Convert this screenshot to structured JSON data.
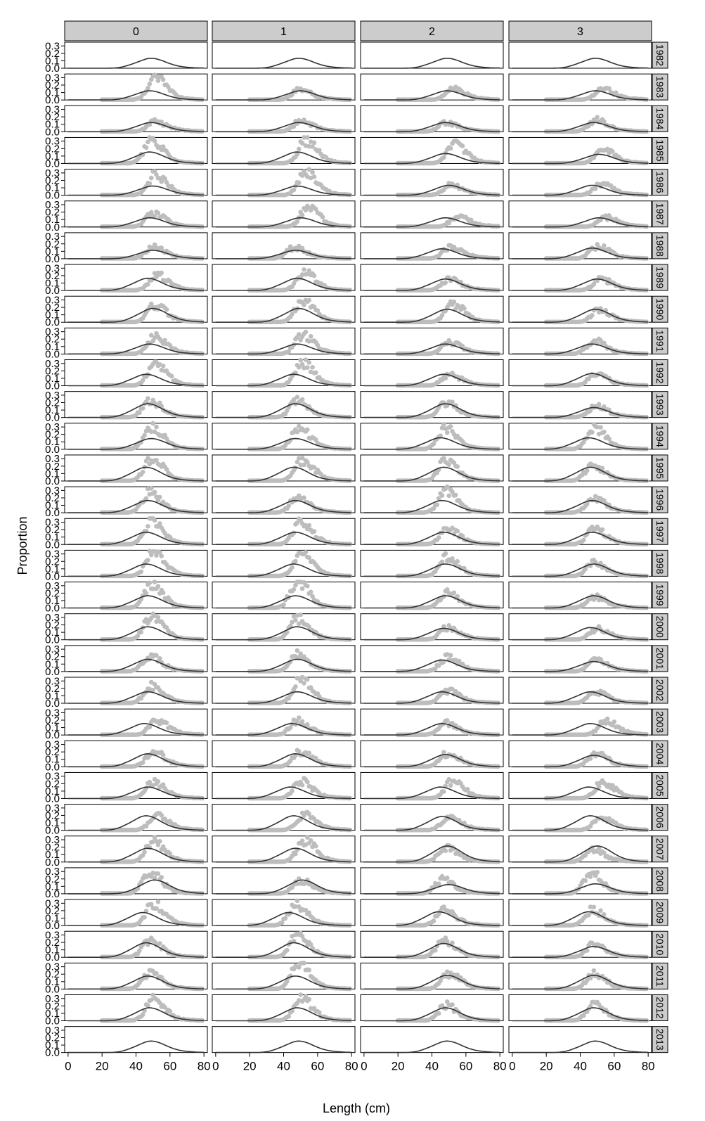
{
  "chart_data": {
    "type": "scatter",
    "title": "",
    "xlabel": "Length (cm)",
    "ylabel": "Proportion",
    "xlim": [
      -2,
      82
    ],
    "ylim": [
      0,
      0.35
    ],
    "x_ticks": [
      0,
      20,
      40,
      60,
      80
    ],
    "y_ticks": [
      0.0,
      0.1,
      0.2,
      0.3
    ],
    "x_tick_labels": [
      "0",
      "20",
      "40",
      "60",
      "80"
    ],
    "y_tick_labels": [
      "0.0",
      "0.1",
      "0.2",
      "0.3"
    ],
    "grid": false,
    "legend": "none",
    "columns": [
      "0",
      "1",
      "2",
      "3"
    ],
    "rows": [
      "1982",
      "1983",
      "1984",
      "1985",
      "1986",
      "1987",
      "1988",
      "1989",
      "1990",
      "1991",
      "1992",
      "1993",
      "1994",
      "1995",
      "1996",
      "1997",
      "1998",
      "1999",
      "2000",
      "2001",
      "2002",
      "2003",
      "2004",
      "2005",
      "2006",
      "2007",
      "2008",
      "2009",
      "2010",
      "2011",
      "2012",
      "2013"
    ],
    "observed_color": "#bdbdbd",
    "fitted_color": "#333333",
    "fit_mode": [
      [
        49,
        49,
        49,
        49
      ],
      [
        48,
        50,
        49,
        49
      ],
      [
        49,
        49,
        48,
        48
      ],
      [
        48,
        48,
        48,
        51
      ],
      [
        50,
        48,
        50,
        47
      ],
      [
        48,
        50,
        48,
        51
      ],
      [
        50,
        47,
        46,
        47
      ],
      [
        47,
        48,
        48,
        50
      ],
      [
        50,
        49,
        49,
        49
      ],
      [
        48,
        48,
        48,
        47
      ],
      [
        46,
        46,
        47,
        47
      ],
      [
        47,
        47,
        48,
        48
      ],
      [
        49,
        47,
        45,
        45
      ],
      [
        46,
        46,
        47,
        46
      ],
      [
        47,
        47,
        46,
        47
      ],
      [
        46,
        47,
        47,
        47
      ],
      [
        46,
        46,
        48,
        48
      ],
      [
        47,
        47,
        48,
        48
      ],
      [
        47,
        48,
        47,
        46
      ],
      [
        47,
        48,
        46,
        48
      ],
      [
        47,
        48,
        46,
        46
      ],
      [
        45,
        45,
        46,
        46
      ],
      [
        47,
        47,
        48,
        48
      ],
      [
        47,
        44,
        45,
        45
      ],
      [
        46,
        46,
        46,
        46
      ],
      [
        47,
        47,
        49,
        50
      ],
      [
        51,
        51,
        50,
        49
      ],
      [
        44,
        43,
        44,
        45
      ],
      [
        46,
        46,
        47,
        48
      ],
      [
        47,
        47,
        49,
        48
      ],
      [
        48,
        48,
        48,
        48
      ],
      [
        49,
        49,
        49,
        49
      ]
    ],
    "obs_mode": [
      [
        null,
        null,
        null,
        null
      ],
      [
        51,
        49,
        52,
        53
      ],
      [
        51,
        50,
        48,
        49
      ],
      [
        49,
        53,
        53,
        53
      ],
      [
        51,
        53,
        51,
        52
      ],
      [
        50,
        54,
        55,
        55
      ],
      [
        50,
        46,
        51,
        50
      ],
      [
        52,
        52,
        50,
        52
      ],
      [
        51,
        51,
        52,
        51
      ],
      [
        51,
        51,
        50,
        48
      ],
      [
        51,
        51,
        50,
        49
      ],
      [
        48,
        48,
        48,
        49
      ],
      [
        49,
        49,
        48,
        48
      ],
      [
        49,
        51,
        48,
        47
      ],
      [
        48,
        48,
        48,
        48
      ],
      [
        49,
        50,
        49,
        48
      ],
      [
        50,
        50,
        49,
        48
      ],
      [
        49,
        48,
        49,
        48
      ],
      [
        49,
        48,
        49,
        50
      ],
      [
        48,
        48,
        49,
        49
      ],
      [
        49,
        50,
        49,
        49
      ],
      [
        52,
        48,
        48,
        55
      ],
      [
        50,
        50,
        49,
        49
      ],
      [
        50,
        50,
        52,
        53
      ],
      [
        52,
        52,
        50,
        52
      ],
      [
        50,
        52,
        48,
        47
      ],
      [
        48,
        50,
        46,
        46
      ],
      [
        50,
        47,
        47,
        47
      ],
      [
        48,
        48,
        47,
        48
      ],
      [
        48,
        49,
        50,
        48
      ],
      [
        50,
        50,
        48,
        48
      ],
      [
        null,
        null,
        null,
        null
      ]
    ],
    "obs_peak": [
      [
        0,
        0,
        0,
        0
      ],
      [
        0.3,
        0.13,
        0.14,
        0.14
      ],
      [
        0.13,
        0.14,
        0.11,
        0.15
      ],
      [
        0.3,
        0.3,
        0.25,
        0.18
      ],
      [
        0.26,
        0.31,
        0.13,
        0.14
      ],
      [
        0.17,
        0.25,
        0.13,
        0.12
      ],
      [
        0.15,
        0.14,
        0.16,
        0.16
      ],
      [
        0.2,
        0.23,
        0.14,
        0.14
      ],
      [
        0.22,
        0.3,
        0.24,
        0.16
      ],
      [
        0.22,
        0.25,
        0.15,
        0.17
      ],
      [
        0.28,
        0.3,
        0.14,
        0.14
      ],
      [
        0.22,
        0.22,
        0.19,
        0.14
      ],
      [
        0.3,
        0.28,
        0.28,
        0.27
      ],
      [
        0.3,
        0.28,
        0.26,
        0.2
      ],
      [
        0.26,
        0.2,
        0.28,
        0.2
      ],
      [
        0.3,
        0.28,
        0.2,
        0.2
      ],
      [
        0.3,
        0.28,
        0.25,
        0.18
      ],
      [
        0.31,
        0.34,
        0.2,
        0.14
      ],
      [
        0.31,
        0.28,
        0.16,
        0.14
      ],
      [
        0.2,
        0.22,
        0.18,
        0.14
      ],
      [
        0.22,
        0.32,
        0.16,
        0.14
      ],
      [
        0.18,
        0.18,
        0.15,
        0.18
      ],
      [
        0.2,
        0.2,
        0.17,
        0.17
      ],
      [
        0.22,
        0.22,
        0.23,
        0.22
      ],
      [
        0.19,
        0.2,
        0.17,
        0.17
      ],
      [
        0.26,
        0.28,
        0.18,
        0.16
      ],
      [
        0.3,
        0.17,
        0.18,
        0.27
      ],
      [
        0.28,
        0.28,
        0.2,
        0.2
      ],
      [
        0.22,
        0.3,
        0.22,
        0.17
      ],
      [
        0.2,
        0.34,
        0.2,
        0.19
      ],
      [
        0.28,
        0.3,
        0.2,
        0.2
      ],
      [
        0,
        0,
        0,
        0
      ]
    ],
    "fit_peak": [
      [
        0.13,
        0.13,
        0.13,
        0.13
      ],
      [
        0.12,
        0.12,
        0.12,
        0.12
      ],
      [
        0.12,
        0.12,
        0.12,
        0.12
      ],
      [
        0.15,
        0.15,
        0.13,
        0.12
      ],
      [
        0.12,
        0.12,
        0.13,
        0.13
      ],
      [
        0.12,
        0.12,
        0.12,
        0.12
      ],
      [
        0.11,
        0.11,
        0.13,
        0.14
      ],
      [
        0.16,
        0.16,
        0.15,
        0.15
      ],
      [
        0.18,
        0.18,
        0.17,
        0.17
      ],
      [
        0.13,
        0.13,
        0.13,
        0.13
      ],
      [
        0.15,
        0.15,
        0.15,
        0.16
      ],
      [
        0.18,
        0.18,
        0.18,
        0.13
      ],
      [
        0.14,
        0.14,
        0.15,
        0.15
      ],
      [
        0.18,
        0.18,
        0.18,
        0.18
      ],
      [
        0.16,
        0.16,
        0.16,
        0.16
      ],
      [
        0.16,
        0.16,
        0.16,
        0.16
      ],
      [
        0.16,
        0.16,
        0.16,
        0.16
      ],
      [
        0.16,
        0.16,
        0.16,
        0.16
      ],
      [
        0.17,
        0.17,
        0.15,
        0.16
      ],
      [
        0.16,
        0.16,
        0.15,
        0.13
      ],
      [
        0.15,
        0.15,
        0.15,
        0.15
      ],
      [
        0.15,
        0.15,
        0.15,
        0.15
      ],
      [
        0.17,
        0.17,
        0.16,
        0.15
      ],
      [
        0.15,
        0.15,
        0.15,
        0.15
      ],
      [
        0.19,
        0.19,
        0.18,
        0.19
      ],
      [
        0.18,
        0.18,
        0.21,
        0.21
      ],
      [
        0.18,
        0.18,
        0.12,
        0.13
      ],
      [
        0.17,
        0.17,
        0.18,
        0.18
      ],
      [
        0.19,
        0.19,
        0.18,
        0.14
      ],
      [
        0.17,
        0.17,
        0.18,
        0.18
      ],
      [
        0.17,
        0.17,
        0.17,
        0.17
      ],
      [
        0.15,
        0.15,
        0.15,
        0.15
      ]
    ]
  }
}
